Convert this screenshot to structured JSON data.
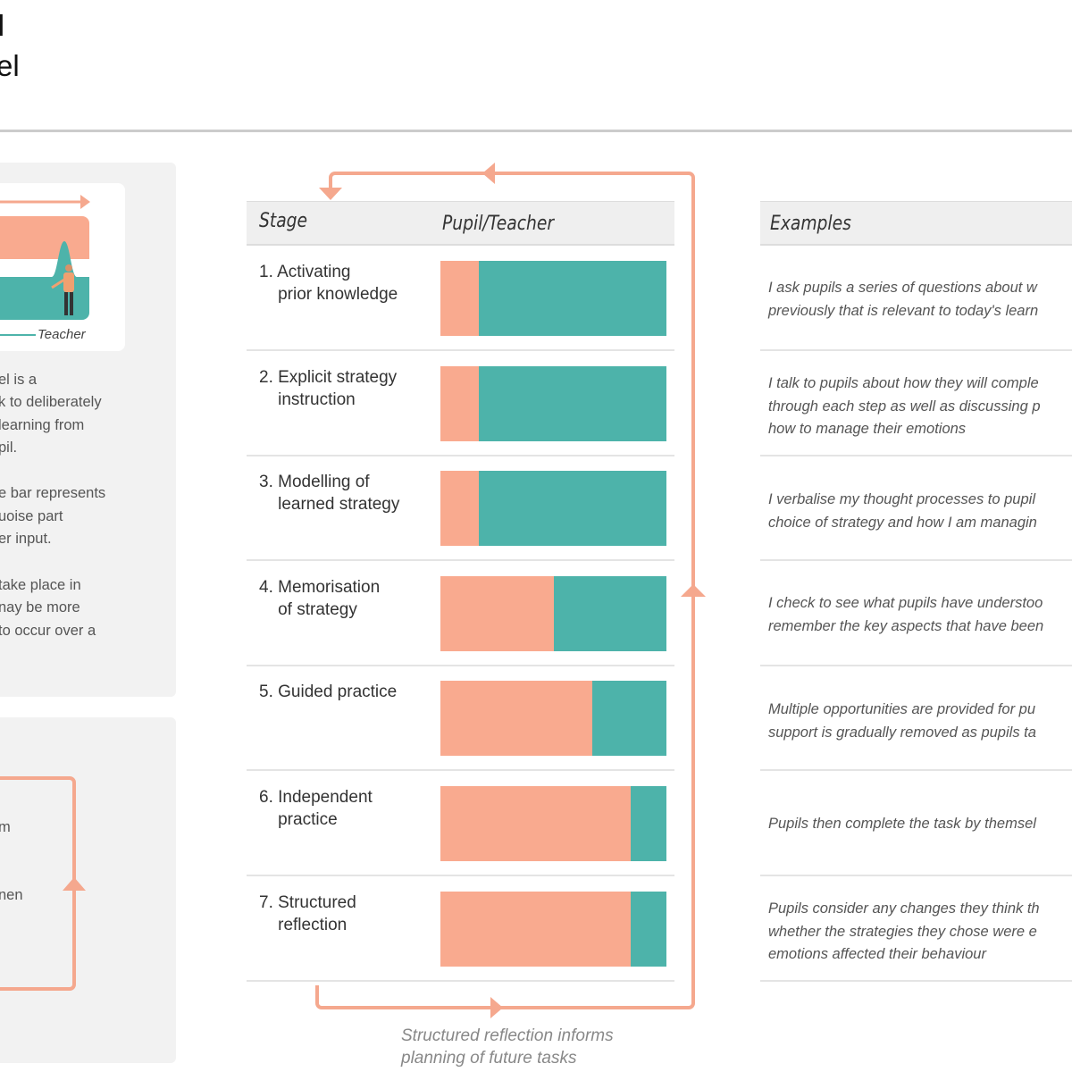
{
  "title": {
    "line1": "l",
    "line2": "el"
  },
  "colors": {
    "pupil": "#F9AA8F",
    "teacher": "#4DB3AA",
    "arrow": "#F5A88E"
  },
  "intro_card": {
    "teacher_label": "Teacher"
  },
  "intro_text": [
    [
      "el is a",
      "k to deliberately",
      " learning from",
      "pil."
    ],
    [
      "e bar represents",
      "uoise part",
      "er input."
    ],
    [
      " take place in",
      "nay be more",
      "to occur over a"
    ]
  ],
  "loop_panel": {
    "lines": [
      "m",
      "nen"
    ]
  },
  "table": {
    "headers": {
      "stage": "Stage",
      "ratio": "Pupil/Teacher",
      "examples": "Examples"
    },
    "rows": [
      {
        "stage": "1. Activating\n    prior knowledge",
        "pupil_share": 0.17,
        "example": "I ask pupils a series of questions about w\npreviously that is relevant to today's learn"
      },
      {
        "stage": "2. Explicit strategy\n    instruction",
        "pupil_share": 0.17,
        "example": "I talk to pupils about how they will comple\nthrough each step as well as discussing p\nhow to manage their emotions"
      },
      {
        "stage": "3. Modelling of\n    learned strategy",
        "pupil_share": 0.17,
        "example": "I verbalise my thought processes to pupil\nchoice of strategy and how I am managin"
      },
      {
        "stage": "4. Memorisation\n    of strategy",
        "pupil_share": 0.5,
        "example": "I check to see what pupils have understoo\nremember the key aspects that have been"
      },
      {
        "stage": "5. Guided practice",
        "pupil_share": 0.67,
        "example": "Multiple opportunities are provided for pu\nsupport is gradually removed as pupils ta"
      },
      {
        "stage": "6. Independent\n    practice",
        "pupil_share": 0.84,
        "example": "Pupils then complete the task by themsel"
      },
      {
        "stage": "7. Structured\n    reflection",
        "pupil_share": 0.84,
        "example": "Pupils consider any changes they think th\nwhether the strategies they chose were e\nemotions affected their behaviour"
      }
    ]
  },
  "caption": "Structured reflection informs\nplanning of future tasks"
}
